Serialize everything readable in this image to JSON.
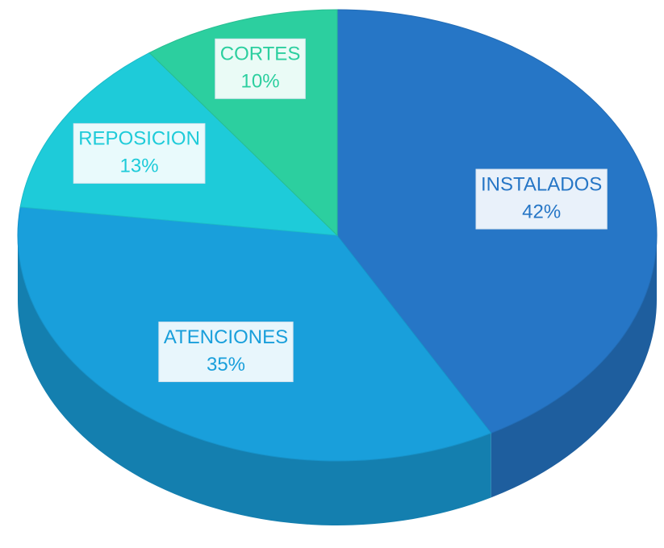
{
  "chart_data": {
    "type": "pie",
    "categories": [
      "INSTALADOS",
      "ATENCIONES",
      "REPOSICION",
      "CORTES"
    ],
    "values": [
      42,
      35,
      13,
      10
    ],
    "value_labels": [
      "42%",
      "35%",
      "13%",
      "10%"
    ],
    "colors": [
      "#2676c6",
      "#199fdb",
      "#1ecbd9",
      "#2ccf9f"
    ]
  }
}
